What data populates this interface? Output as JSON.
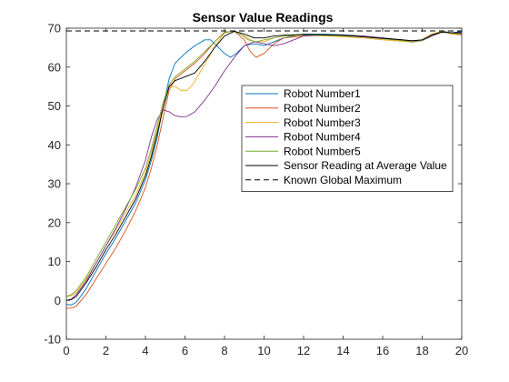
{
  "chart_data": {
    "type": "line",
    "title": "Sensor Value Readings",
    "xlabel": "",
    "ylabel": "",
    "xlim": [
      0,
      20
    ],
    "ylim": [
      -10,
      70
    ],
    "xticks": [
      0,
      2,
      4,
      6,
      8,
      10,
      12,
      14,
      16,
      18,
      20
    ],
    "yticks": [
      -10,
      0,
      10,
      20,
      30,
      40,
      50,
      60,
      70
    ],
    "grid": false,
    "legend_position": "center-right",
    "series": [
      {
        "name": "Robot Number1",
        "color": "#0072BD",
        "dash": "solid",
        "x": [
          0,
          0.25,
          0.5,
          1,
          1.5,
          2,
          2.5,
          3,
          3.5,
          4,
          4.3,
          4.6,
          4.9,
          5.2,
          5.5,
          6,
          6.5,
          7,
          7.3,
          7.6,
          8,
          8.3,
          8.6,
          9,
          9.5,
          10,
          10.5,
          11,
          11.5,
          12,
          13,
          14,
          15,
          16,
          17,
          17.5,
          18,
          18.5,
          19,
          19.5,
          20
        ],
        "y": [
          -1,
          -1.2,
          -0.5,
          3,
          7.5,
          12,
          16,
          20.5,
          25,
          31,
          36,
          42,
          50,
          57,
          61,
          63.5,
          65.5,
          67,
          67,
          65.5,
          63.5,
          62.5,
          63.5,
          65.5,
          66,
          65.5,
          66.5,
          67.5,
          68,
          68.5,
          68.5,
          68.3,
          68,
          67.5,
          67,
          66.5,
          67,
          68.3,
          69.3,
          68.8,
          69.2
        ]
      },
      {
        "name": "Robot Number2",
        "color": "#D95319",
        "dash": "solid",
        "x": [
          0,
          0.25,
          0.5,
          1,
          1.5,
          2,
          2.5,
          3,
          3.5,
          4,
          4.3,
          4.6,
          4.9,
          5.2,
          5.5,
          6,
          6.5,
          7,
          7.5,
          8,
          8.5,
          9,
          9.3,
          9.6,
          10,
          10.5,
          11,
          12,
          13,
          14,
          15,
          16,
          17,
          17.5,
          18,
          18.5,
          19,
          19.5,
          20
        ],
        "y": [
          -2,
          -2,
          -1.5,
          1.5,
          5.5,
          9.5,
          13.5,
          18,
          23,
          29,
          34,
          40,
          47,
          54,
          57,
          59,
          61,
          63.5,
          66.5,
          69,
          69.2,
          67,
          64,
          62.5,
          63.5,
          66,
          67.5,
          68,
          68.2,
          68,
          67.8,
          67.3,
          66.8,
          66.5,
          67,
          68.5,
          69.2,
          68.5,
          68.3
        ]
      },
      {
        "name": "Robot Number3",
        "color": "#EDB120",
        "dash": "solid",
        "x": [
          0,
          0.25,
          0.5,
          1,
          1.5,
          2,
          2.5,
          3,
          3.5,
          4,
          4.3,
          4.6,
          4.9,
          5.2,
          5.5,
          5.8,
          6.1,
          6.4,
          6.8,
          7.2,
          7.6,
          8,
          8.5,
          9,
          9.5,
          10,
          10.5,
          11,
          12,
          13,
          14,
          15,
          16,
          17,
          17.5,
          18,
          18.5,
          19,
          19.5,
          20
        ],
        "y": [
          1,
          1.2,
          2,
          5.5,
          9.5,
          14,
          18,
          22.5,
          27,
          33,
          38,
          44,
          50,
          55,
          55,
          54,
          54,
          55.5,
          59,
          62.5,
          66,
          68.8,
          69.3,
          68,
          66.5,
          66.5,
          67.5,
          68,
          68.2,
          68,
          67.8,
          67.5,
          67,
          66.6,
          66.5,
          67,
          68.5,
          69.2,
          68.5,
          68.5
        ]
      },
      {
        "name": "Robot Number4",
        "color": "#7E2F8E",
        "dash": "solid",
        "x": [
          0,
          0.25,
          0.5,
          1,
          1.5,
          2,
          2.5,
          3,
          3.5,
          4,
          4.3,
          4.6,
          4.9,
          5.2,
          5.5,
          5.8,
          6.1,
          6.5,
          7,
          7.5,
          8,
          8.5,
          9,
          9.5,
          10,
          10.5,
          11,
          11.5,
          12,
          13,
          14,
          15,
          16,
          17,
          17.5,
          18,
          18.5,
          19,
          19.5,
          20
        ],
        "y": [
          0,
          0.3,
          1.5,
          5,
          9.5,
          14,
          18.5,
          23.5,
          29,
          36,
          42,
          46.5,
          49,
          48.5,
          47.5,
          47.2,
          47.3,
          48.5,
          51.5,
          55,
          59,
          62.5,
          65.5,
          66.5,
          66,
          65.5,
          66,
          67,
          68,
          68.3,
          68.2,
          68,
          67.5,
          67,
          66.7,
          66.8,
          68,
          69,
          68.8,
          69
        ]
      },
      {
        "name": "Robot Number5",
        "color": "#77AC30",
        "dash": "solid",
        "x": [
          0,
          0.25,
          0.5,
          1,
          1.5,
          2,
          2.5,
          3,
          3.5,
          4,
          4.3,
          4.6,
          4.9,
          5.2,
          5.5,
          6,
          6.5,
          7,
          7.5,
          8,
          8.4,
          8.8,
          9.2,
          9.6,
          10,
          10.5,
          11,
          12,
          13,
          14,
          15,
          16,
          17,
          17.5,
          18,
          18.5,
          19,
          19.5,
          20
        ],
        "y": [
          1,
          1.5,
          2.5,
          6,
          10.5,
          15,
          19.5,
          24,
          28.5,
          34,
          39,
          45,
          51,
          55.5,
          57.5,
          59.5,
          61.5,
          64,
          66.5,
          68.8,
          69.3,
          68.5,
          67,
          66.5,
          67,
          67.5,
          68,
          68.3,
          68.2,
          68,
          67.8,
          67.3,
          66.8,
          66.4,
          66.8,
          68.3,
          69.2,
          68.8,
          68.5
        ]
      },
      {
        "name": "Sensor Reading at Average Value",
        "color": "#000000",
        "dash": "solid",
        "x": [
          0,
          0.25,
          0.5,
          1,
          1.5,
          2,
          2.5,
          3,
          3.5,
          4,
          4.3,
          4.6,
          4.9,
          5.2,
          5.5,
          6,
          6.5,
          7,
          7.5,
          8,
          8.5,
          9,
          9.5,
          10,
          10.5,
          11,
          12,
          13,
          14,
          15,
          16,
          17,
          17.5,
          18,
          18.5,
          19,
          19.5,
          20
        ],
        "y": [
          0,
          0.2,
          1,
          4.5,
          8.5,
          13,
          17,
          21.5,
          26,
          32,
          37,
          43,
          49.5,
          55,
          56.5,
          57.5,
          58.5,
          61.5,
          65,
          68,
          69.2,
          68.5,
          67.5,
          67.5,
          68,
          68.2,
          68.4,
          68.3,
          68.2,
          67.8,
          67.4,
          67,
          66.8,
          67,
          68.3,
          69,
          68.8,
          68.8
        ]
      },
      {
        "name": "Known Global Maximum",
        "color": "#000000",
        "dash": "dashed",
        "x": [
          0,
          20
        ],
        "y": [
          69.3,
          69.3
        ]
      }
    ]
  }
}
